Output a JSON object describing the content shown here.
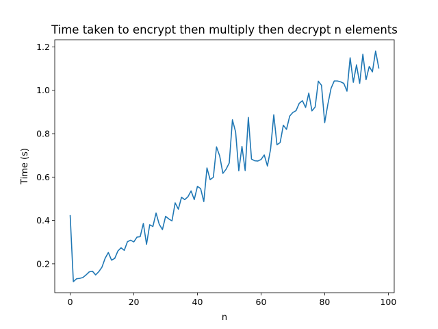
{
  "chart_data": {
    "type": "line",
    "title": "Time taken to encrypt then multiply then decrypt n elements",
    "xlabel": "n",
    "ylabel": "Time (s)",
    "xlim": [
      -4.85,
      101.85
    ],
    "ylim": [
      0.067,
      1.233
    ],
    "grid": false,
    "x_ticks": [
      0,
      20,
      40,
      60,
      80,
      100
    ],
    "y_ticks": [
      0.2,
      0.4,
      0.6,
      0.8,
      1.0,
      1.2
    ],
    "x_tick_labels": [
      "0",
      "20",
      "40",
      "60",
      "80",
      "100"
    ],
    "y_tick_labels": [
      "0.2",
      "0.4",
      "0.6",
      "0.8",
      "1.0",
      "1.2"
    ],
    "series": [
      {
        "name": "time",
        "color": "#1f77b4",
        "x": [
          0,
          1,
          2,
          3,
          4,
          5,
          6,
          7,
          8,
          9,
          10,
          11,
          12,
          13,
          14,
          15,
          16,
          17,
          18,
          19,
          20,
          21,
          22,
          23,
          24,
          25,
          26,
          27,
          28,
          29,
          30,
          31,
          32,
          33,
          34,
          35,
          36,
          37,
          38,
          39,
          40,
          41,
          42,
          43,
          44,
          45,
          46,
          47,
          48,
          49,
          50,
          51,
          52,
          53,
          54,
          55,
          56,
          57,
          58,
          59,
          60,
          61,
          62,
          63,
          64,
          65,
          66,
          67,
          68,
          69,
          70,
          71,
          72,
          73,
          74,
          75,
          76,
          77,
          78,
          79,
          80,
          81,
          82,
          83,
          84,
          85,
          86,
          87,
          88,
          89,
          90,
          91,
          92,
          93,
          94,
          95,
          96,
          97
        ],
        "y": [
          0.422,
          0.118,
          0.131,
          0.133,
          0.137,
          0.149,
          0.163,
          0.166,
          0.149,
          0.164,
          0.185,
          0.226,
          0.252,
          0.217,
          0.225,
          0.259,
          0.274,
          0.262,
          0.302,
          0.309,
          0.301,
          0.323,
          0.325,
          0.386,
          0.29,
          0.38,
          0.372,
          0.434,
          0.382,
          0.358,
          0.419,
          0.407,
          0.398,
          0.481,
          0.452,
          0.507,
          0.496,
          0.509,
          0.536,
          0.496,
          0.557,
          0.547,
          0.487,
          0.642,
          0.588,
          0.599,
          0.739,
          0.697,
          0.617,
          0.636,
          0.665,
          0.864,
          0.808,
          0.629,
          0.741,
          0.63,
          0.875,
          0.683,
          0.675,
          0.674,
          0.681,
          0.702,
          0.651,
          0.729,
          0.887,
          0.749,
          0.759,
          0.839,
          0.82,
          0.881,
          0.898,
          0.906,
          0.94,
          0.952,
          0.921,
          0.987,
          0.905,
          0.923,
          1.042,
          1.023,
          0.851,
          0.936,
          1.009,
          1.043,
          1.043,
          1.039,
          1.032,
          0.996,
          1.15,
          1.037,
          1.117,
          1.032,
          1.166,
          1.049,
          1.11,
          1.085,
          1.181,
          1.103
        ]
      }
    ]
  }
}
